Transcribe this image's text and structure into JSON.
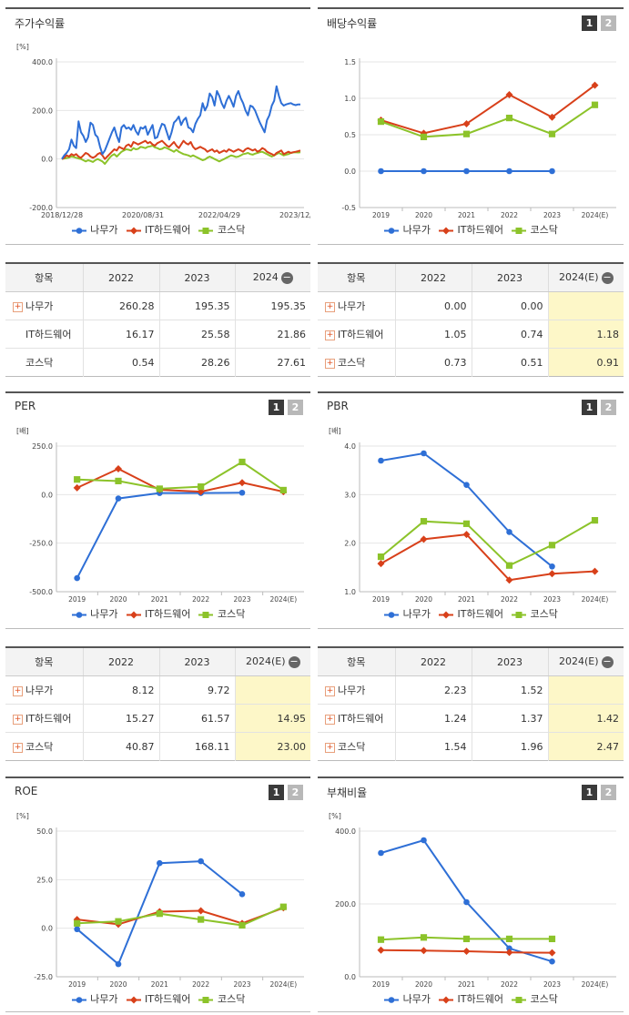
{
  "colors": {
    "namuga": "#2e6fd6",
    "ithw": "#d8401a",
    "kosdaq": "#8cc32a"
  },
  "legend": [
    "나무가",
    "IT하드웨어",
    "코스닥"
  ],
  "panels": {
    "stock_return": {
      "title": "주가수익률",
      "unit": "[%]"
    },
    "dividend": {
      "title": "배당수익률",
      "btn1": "1",
      "btn2": "2",
      "unit": ""
    },
    "per": {
      "title": "PER",
      "btn1": "1",
      "btn2": "2",
      "unit": "[배]"
    },
    "pbr": {
      "title": "PBR",
      "btn1": "1",
      "btn2": "2",
      "unit": "[배]"
    },
    "roe": {
      "title": "ROE",
      "btn1": "1",
      "btn2": "2",
      "unit": "[%]"
    },
    "debt": {
      "title": "부채비율",
      "btn1": "1",
      "btn2": "2",
      "unit": "[%]"
    }
  },
  "tables": {
    "stock_return": {
      "headers": [
        "항목",
        "2022",
        "2023",
        "2024"
      ],
      "rows": [
        {
          "name": "나무가",
          "plus": true,
          "v": [
            "260.28",
            "195.35",
            "195.35"
          ]
        },
        {
          "name": "IT하드웨어",
          "plus": false,
          "v": [
            "16.17",
            "25.58",
            "21.86"
          ]
        },
        {
          "name": "코스닥",
          "plus": false,
          "v": [
            "0.54",
            "28.26",
            "27.61"
          ]
        }
      ]
    },
    "dividend": {
      "headers": [
        "항목",
        "2022",
        "2023",
        "2024(E)"
      ],
      "rows": [
        {
          "name": "나무가",
          "plus": true,
          "v": [
            "0.00",
            "0.00",
            ""
          ]
        },
        {
          "name": "IT하드웨어",
          "plus": true,
          "v": [
            "1.05",
            "0.74",
            "1.18"
          ]
        },
        {
          "name": "코스닥",
          "plus": true,
          "v": [
            "0.73",
            "0.51",
            "0.91"
          ]
        }
      ]
    },
    "per": {
      "headers": [
        "항목",
        "2022",
        "2023",
        "2024(E)"
      ],
      "rows": [
        {
          "name": "나무가",
          "plus": true,
          "v": [
            "8.12",
            "9.72",
            ""
          ]
        },
        {
          "name": "IT하드웨어",
          "plus": true,
          "v": [
            "15.27",
            "61.57",
            "14.95"
          ]
        },
        {
          "name": "코스닥",
          "plus": true,
          "v": [
            "40.87",
            "168.11",
            "23.00"
          ]
        }
      ]
    },
    "pbr": {
      "headers": [
        "항목",
        "2022",
        "2023",
        "2024(E)"
      ],
      "rows": [
        {
          "name": "나무가",
          "plus": true,
          "v": [
            "2.23",
            "1.52",
            ""
          ]
        },
        {
          "name": "IT하드웨어",
          "plus": true,
          "v": [
            "1.24",
            "1.37",
            "1.42"
          ]
        },
        {
          "name": "코스닥",
          "plus": true,
          "v": [
            "1.54",
            "1.96",
            "2.47"
          ]
        }
      ]
    }
  },
  "chart_data": [
    {
      "id": "stock_return",
      "type": "line",
      "title": "주가수익률",
      "ylabel": "[%]",
      "ylim": [
        -200,
        400
      ],
      "yticks": [
        "400.0",
        "200.0",
        "0.0",
        "-200.0"
      ],
      "xticks": [
        "2018/12/28",
        "2020/08/31",
        "2022/04/29",
        "2023/12/28"
      ],
      "x": [
        0,
        0.01,
        0.02,
        0.03,
        0.04,
        0.05,
        0.06,
        0.07,
        0.08,
        0.09,
        0.1,
        0.11,
        0.12,
        0.13,
        0.14,
        0.15,
        0.16,
        0.17,
        0.18,
        0.19,
        0.2,
        0.21,
        0.22,
        0.23,
        0.24,
        0.25,
        0.26,
        0.27,
        0.28,
        0.29,
        0.3,
        0.31,
        0.32,
        0.33,
        0.34,
        0.35,
        0.36,
        0.37,
        0.38,
        0.39,
        0.4,
        0.41,
        0.42,
        0.43,
        0.44,
        0.45,
        0.46,
        0.47,
        0.48,
        0.49,
        0.5,
        0.51,
        0.52,
        0.53,
        0.54,
        0.55,
        0.56,
        0.57,
        0.58,
        0.59,
        0.6,
        0.61,
        0.62,
        0.63,
        0.64,
        0.65,
        0.66,
        0.67,
        0.68,
        0.69,
        0.7,
        0.71,
        0.72,
        0.73,
        0.74,
        0.75,
        0.76,
        0.77,
        0.78,
        0.79,
        0.8,
        0.81,
        0.82,
        0.83,
        0.84,
        0.85,
        0.86,
        0.87,
        0.88,
        0.89,
        0.9,
        0.91,
        0.92,
        0.93,
        0.94,
        0.95,
        0.96,
        0.97,
        0.98,
        0.99,
        1
      ],
      "series": [
        {
          "name": "나무가",
          "values": [
            0,
            15,
            25,
            40,
            80,
            55,
            45,
            155,
            110,
            95,
            70,
            90,
            150,
            140,
            100,
            90,
            50,
            20,
            35,
            60,
            85,
            110,
            130,
            95,
            70,
            130,
            140,
            125,
            130,
            120,
            140,
            115,
            100,
            130,
            125,
            135,
            100,
            120,
            140,
            85,
            90,
            120,
            145,
            140,
            110,
            80,
            110,
            150,
            160,
            175,
            140,
            160,
            170,
            130,
            125,
            110,
            145,
            165,
            180,
            230,
            200,
            220,
            270,
            255,
            220,
            280,
            260,
            230,
            210,
            240,
            260,
            240,
            215,
            260,
            280,
            250,
            230,
            200,
            180,
            220,
            215,
            200,
            175,
            150,
            130,
            110,
            160,
            180,
            220,
            240,
            300,
            260,
            230,
            220,
            225,
            228,
            230,
            225,
            222,
            225,
            225
          ]
        },
        {
          "name": "IT하드웨어",
          "values": [
            0,
            5,
            15,
            10,
            20,
            15,
            20,
            10,
            5,
            15,
            25,
            20,
            10,
            5,
            10,
            20,
            25,
            15,
            0,
            10,
            20,
            30,
            40,
            35,
            50,
            45,
            40,
            55,
            60,
            50,
            70,
            65,
            60,
            65,
            70,
            75,
            65,
            70,
            60,
            55,
            65,
            70,
            75,
            65,
            55,
            50,
            60,
            70,
            55,
            45,
            60,
            75,
            65,
            60,
            70,
            50,
            40,
            45,
            50,
            45,
            40,
            30,
            35,
            40,
            30,
            35,
            25,
            30,
            35,
            30,
            40,
            35,
            30,
            35,
            40,
            35,
            30,
            40,
            45,
            40,
            35,
            40,
            30,
            35,
            45,
            40,
            30,
            25,
            20,
            15,
            25,
            30,
            35,
            20,
            25,
            30,
            25,
            28,
            30,
            32,
            35
          ]
        },
        {
          "name": "코스닥",
          "values": [
            0,
            2,
            4,
            6,
            10,
            8,
            5,
            2,
            0,
            -5,
            -10,
            -5,
            -8,
            -12,
            -5,
            0,
            -5,
            -10,
            -20,
            -8,
            5,
            15,
            20,
            10,
            20,
            30,
            35,
            40,
            38,
            35,
            45,
            40,
            42,
            50,
            48,
            45,
            50,
            52,
            55,
            48,
            45,
            40,
            42,
            48,
            45,
            40,
            35,
            30,
            38,
            30,
            25,
            20,
            18,
            15,
            10,
            15,
            10,
            5,
            0,
            -5,
            -2,
            5,
            10,
            5,
            0,
            -5,
            -10,
            -5,
            0,
            5,
            10,
            15,
            12,
            8,
            10,
            15,
            20,
            22,
            25,
            20,
            18,
            22,
            25,
            28,
            30,
            25,
            20,
            15,
            10,
            15,
            20,
            25,
            20,
            15,
            18,
            20,
            25,
            27,
            28,
            27,
            28
          ]
        }
      ]
    },
    {
      "id": "dividend",
      "type": "line",
      "title": "배당수익률",
      "ylim": [
        -0.5,
        1.5
      ],
      "yticks": [
        "1.5",
        "1.0",
        "0.5",
        "0.0",
        "-0.5"
      ],
      "categories": [
        "2019",
        "2020",
        "2021",
        "2022",
        "2023",
        "2024(E)"
      ],
      "series": [
        {
          "name": "나무가",
          "values": [
            0,
            0,
            0,
            0,
            0,
            null
          ]
        },
        {
          "name": "IT하드웨어",
          "values": [
            0.7,
            0.52,
            0.65,
            1.05,
            0.74,
            1.18
          ]
        },
        {
          "name": "코스닥",
          "values": [
            0.68,
            0.47,
            0.51,
            0.73,
            0.51,
            0.91
          ]
        }
      ]
    },
    {
      "id": "per",
      "type": "line",
      "title": "PER",
      "ylabel": "[배]",
      "ylim": [
        -500,
        250
      ],
      "yticks": [
        "250.0",
        "0.0",
        "-250.0",
        "-500.0"
      ],
      "categories": [
        "2019",
        "2020",
        "2021",
        "2022",
        "2023",
        "2024(E)"
      ],
      "series": [
        {
          "name": "나무가",
          "values": [
            -430,
            -20,
            8,
            8.12,
            9.72,
            null
          ]
        },
        {
          "name": "IT하드웨어",
          "values": [
            35,
            133,
            25,
            15.27,
            61.57,
            14.95
          ]
        },
        {
          "name": "코스닥",
          "values": [
            78,
            70,
            30,
            40.87,
            168.11,
            23.0
          ]
        }
      ]
    },
    {
      "id": "pbr",
      "type": "line",
      "title": "PBR",
      "ylabel": "[배]",
      "ylim": [
        1.0,
        4.0
      ],
      "yticks": [
        "4.0",
        "3.0",
        "2.0",
        "1.0"
      ],
      "categories": [
        "2019",
        "2020",
        "2021",
        "2022",
        "2023",
        "2024(E)"
      ],
      "series": [
        {
          "name": "나무가",
          "values": [
            3.7,
            3.85,
            3.2,
            2.23,
            1.52,
            null
          ]
        },
        {
          "name": "IT하드웨어",
          "values": [
            1.58,
            2.08,
            2.18,
            1.24,
            1.37,
            1.42
          ]
        },
        {
          "name": "코스닥",
          "values": [
            1.72,
            2.45,
            2.4,
            1.54,
            1.96,
            2.47
          ]
        }
      ]
    },
    {
      "id": "roe",
      "type": "line",
      "title": "ROE",
      "ylabel": "[%]",
      "ylim": [
        -25,
        50
      ],
      "yticks": [
        "50.0",
        "25.0",
        "0.0",
        "-25.0"
      ],
      "categories": [
        "2019",
        "2020",
        "2021",
        "2022",
        "2023",
        "2024(E)"
      ],
      "series": [
        {
          "name": "나무가",
          "values": [
            -0.5,
            -18.5,
            33.5,
            34.5,
            17.5,
            null
          ]
        },
        {
          "name": "IT하드웨어",
          "values": [
            4.5,
            2.0,
            8.5,
            9.0,
            2.5,
            10.5
          ]
        },
        {
          "name": "코스닥",
          "values": [
            2.5,
            3.5,
            7.5,
            4.5,
            1.5,
            11.0
          ]
        }
      ]
    },
    {
      "id": "debt",
      "type": "line",
      "title": "부채비율",
      "ylabel": "[%]",
      "ylim": [
        0,
        400
      ],
      "yticks": [
        "400.0",
        "200.0",
        "0.0"
      ],
      "categories": [
        "2019",
        "2020",
        "2021",
        "2022",
        "2023",
        "2024(E)"
      ],
      "series": [
        {
          "name": "나무가",
          "values": [
            340,
            375,
            205,
            78,
            42,
            null
          ]
        },
        {
          "name": "IT하드웨어",
          "values": [
            73,
            72,
            70,
            67,
            66,
            null
          ]
        },
        {
          "name": "코스닥",
          "values": [
            102,
            108,
            104,
            104,
            104,
            null
          ]
        }
      ]
    }
  ]
}
